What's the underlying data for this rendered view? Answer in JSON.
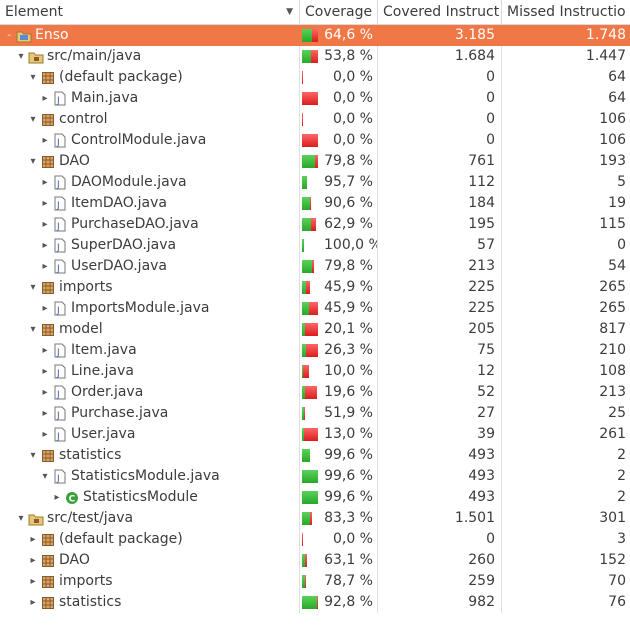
{
  "columns": {
    "element": "Element",
    "coverage": "Coverage",
    "covered": "Covered Instruct",
    "missed": "Missed Instructio"
  },
  "colors": {
    "selection": "#f07746",
    "covered_bar": "#2fb52f",
    "missed_bar": "#e02525"
  },
  "rows": [
    {
      "level": 0,
      "twisty": "collapse",
      "icon": "project-icon",
      "label": "Enso",
      "coverage": "64,6 %",
      "covered": "3.185",
      "missed": "1.748",
      "ratio": 0.646,
      "selected": true
    },
    {
      "level": 1,
      "twisty": "expanded",
      "icon": "source-folder-icon",
      "label": "src/main/java",
      "coverage": "53,8 %",
      "covered": "1.684",
      "missed": "1.447",
      "ratio": 0.538
    },
    {
      "level": 2,
      "twisty": "expanded",
      "icon": "package-icon",
      "label": "(default package)",
      "coverage": "0,0 %",
      "covered": "0",
      "missed": "64",
      "ratio": 0.0,
      "bar_width": 0.06
    },
    {
      "level": 3,
      "twisty": "collapsed",
      "icon": "java-file-icon",
      "label": "Main.java",
      "coverage": "0,0 %",
      "covered": "0",
      "missed": "64",
      "ratio": 0.0,
      "bar_width": 1
    },
    {
      "level": 2,
      "twisty": "expanded",
      "icon": "package-icon",
      "label": "control",
      "coverage": "0,0 %",
      "covered": "0",
      "missed": "106",
      "ratio": 0.0,
      "bar_width": 0.06
    },
    {
      "level": 3,
      "twisty": "collapsed",
      "icon": "java-file-icon",
      "label": "ControlModule.java",
      "coverage": "0,0 %",
      "covered": "0",
      "missed": "106",
      "ratio": 0.0,
      "bar_width": 1
    },
    {
      "level": 2,
      "twisty": "expanded",
      "icon": "package-icon",
      "label": "DAO",
      "coverage": "79,8 %",
      "covered": "761",
      "missed": "193",
      "ratio": 0.798
    },
    {
      "level": 3,
      "twisty": "collapsed",
      "icon": "java-file-icon",
      "label": "DAOModule.java",
      "coverage": "95,7 %",
      "covered": "112",
      "missed": "5",
      "ratio": 0.957,
      "bar_width": 0.3
    },
    {
      "level": 3,
      "twisty": "collapsed",
      "icon": "java-file-icon",
      "label": "ItemDAO.java",
      "coverage": "90,6 %",
      "covered": "184",
      "missed": "19",
      "ratio": 0.906,
      "bar_width": 0.55
    },
    {
      "level": 3,
      "twisty": "collapsed",
      "icon": "java-file-icon",
      "label": "PurchaseDAO.java",
      "coverage": "62,9 %",
      "covered": "195",
      "missed": "115",
      "ratio": 0.629,
      "bar_width": 0.85
    },
    {
      "level": 3,
      "twisty": "collapsed",
      "icon": "java-file-icon",
      "label": "SuperDAO.java",
      "coverage": "100,0 %",
      "covered": "57",
      "missed": "0",
      "ratio": 1.0,
      "bar_width": 0.12
    },
    {
      "level": 3,
      "twisty": "collapsed",
      "icon": "java-file-icon",
      "label": "UserDAO.java",
      "coverage": "79,8 %",
      "covered": "213",
      "missed": "54",
      "ratio": 0.798,
      "bar_width": 0.75
    },
    {
      "level": 2,
      "twisty": "expanded",
      "icon": "package-icon",
      "label": "imports",
      "coverage": "45,9 %",
      "covered": "225",
      "missed": "265",
      "ratio": 0.459,
      "bar_width": 0.5
    },
    {
      "level": 3,
      "twisty": "collapsed",
      "icon": "java-file-icon",
      "label": "ImportsModule.java",
      "coverage": "45,9 %",
      "covered": "225",
      "missed": "265",
      "ratio": 0.459,
      "bar_width": 1
    },
    {
      "level": 2,
      "twisty": "expanded",
      "icon": "package-icon",
      "label": "model",
      "coverage": "20,1 %",
      "covered": "205",
      "missed": "817",
      "ratio": 0.201
    },
    {
      "level": 3,
      "twisty": "collapsed",
      "icon": "java-file-icon",
      "label": "Item.java",
      "coverage": "26,3 %",
      "covered": "75",
      "missed": "210",
      "ratio": 0.263,
      "bar_width": 1
    },
    {
      "level": 3,
      "twisty": "collapsed",
      "icon": "java-file-icon",
      "label": "Line.java",
      "coverage": "10,0 %",
      "covered": "12",
      "missed": "108",
      "ratio": 0.1,
      "bar_width": 0.42
    },
    {
      "level": 3,
      "twisty": "collapsed",
      "icon": "java-file-icon",
      "label": "Order.java",
      "coverage": "19,6 %",
      "covered": "52",
      "missed": "213",
      "ratio": 0.196,
      "bar_width": 0.93
    },
    {
      "level": 3,
      "twisty": "collapsed",
      "icon": "java-file-icon",
      "label": "Purchase.java",
      "coverage": "51,9 %",
      "covered": "27",
      "missed": "25",
      "ratio": 0.519,
      "bar_width": 0.18
    },
    {
      "level": 3,
      "twisty": "collapsed",
      "icon": "java-file-icon",
      "label": "User.java",
      "coverage": "13,0 %",
      "covered": "39",
      "missed": "261",
      "ratio": 0.13,
      "bar_width": 1
    },
    {
      "level": 2,
      "twisty": "expanded",
      "icon": "package-icon",
      "label": "statistics",
      "coverage": "99,6 %",
      "covered": "493",
      "missed": "2",
      "ratio": 0.996,
      "bar_width": 0.5
    },
    {
      "level": 3,
      "twisty": "expanded",
      "icon": "java-file-icon",
      "label": "StatisticsModule.java",
      "coverage": "99,6 %",
      "covered": "493",
      "missed": "2",
      "ratio": 0.996,
      "bar_width": 1
    },
    {
      "level": 4,
      "twisty": "collapsed",
      "icon": "class-icon",
      "label": "StatisticsModule",
      "coverage": "99,6 %",
      "covered": "493",
      "missed": "2",
      "ratio": 0.996,
      "bar_width": 1
    },
    {
      "level": 1,
      "twisty": "expanded",
      "icon": "source-folder-icon",
      "label": "src/test/java",
      "coverage": "83,3 %",
      "covered": "1.501",
      "missed": "301",
      "ratio": 0.833,
      "bar_width": 0.6
    },
    {
      "level": 2,
      "twisty": "collapsed",
      "icon": "package-icon",
      "label": "(default package)",
      "coverage": "0,0 %",
      "covered": "0",
      "missed": "3",
      "ratio": 0.0,
      "bar_width": 0.0
    },
    {
      "level": 2,
      "twisty": "collapsed",
      "icon": "package-icon",
      "label": "DAO",
      "coverage": "63,1 %",
      "covered": "260",
      "missed": "152",
      "ratio": 0.631,
      "bar_width": 0.3
    },
    {
      "level": 2,
      "twisty": "collapsed",
      "icon": "package-icon",
      "label": "imports",
      "coverage": "78,7 %",
      "covered": "259",
      "missed": "70",
      "ratio": 0.787,
      "bar_width": 0.25
    },
    {
      "level": 2,
      "twisty": "collapsed",
      "icon": "package-icon",
      "label": "statistics",
      "coverage": "92,8 %",
      "covered": "982",
      "missed": "76",
      "ratio": 0.928,
      "bar_width": 1
    }
  ]
}
